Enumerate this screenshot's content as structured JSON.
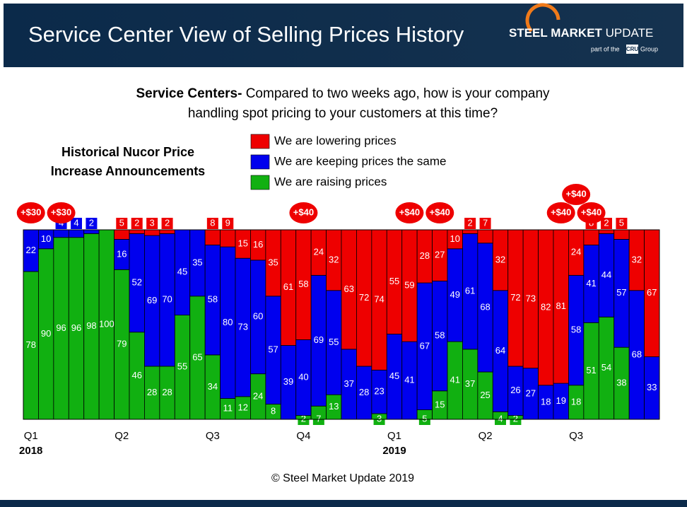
{
  "header": {
    "title": "Service Center View of Selling Prices History",
    "logo_bold": "STEEL MARKET",
    "logo_light": "UPDATE",
    "logo_sub_pre": "part of the",
    "logo_sub_box": "CRU",
    "logo_sub_post": "Group"
  },
  "chart_data": {
    "type": "stacked_bar_100",
    "subtitle_bold": "Service Centers-",
    "subtitle_lines": [
      "Compared to two weeks ago, how is your company",
      "handling spot pricing to your customers at this time?"
    ],
    "annotation_title_lines": [
      "Historical Nucor Price",
      "Increase Announcements"
    ],
    "categories": [
      "Q1",
      null,
      null,
      null,
      null,
      null,
      "Q2",
      null,
      null,
      null,
      null,
      null,
      "Q3",
      null,
      null,
      null,
      null,
      null,
      "Q4",
      null,
      null,
      null,
      null,
      null,
      "Q1",
      null,
      null,
      null,
      null,
      null,
      "Q2",
      null,
      null,
      null,
      null,
      null,
      "Q3",
      null,
      null,
      null,
      null,
      null
    ],
    "category_years": [
      "2018",
      null,
      null,
      null,
      null,
      null,
      null,
      null,
      null,
      null,
      null,
      null,
      null,
      null,
      null,
      null,
      null,
      null,
      null,
      null,
      null,
      null,
      null,
      null,
      "2019",
      null,
      null,
      null,
      null,
      null,
      null,
      null,
      null,
      null,
      null,
      null,
      null,
      null,
      null,
      null,
      null,
      null
    ],
    "series": [
      {
        "name": "We are lowering prices",
        "color": "#ee0000",
        "values": [
          0,
          0,
          0,
          0,
          0,
          0,
          5,
          2,
          3,
          2,
          0,
          0,
          8,
          9,
          15,
          16,
          35,
          61,
          58,
          24,
          32,
          63,
          72,
          74,
          55,
          59,
          28,
          27,
          10,
          2,
          7,
          32,
          72,
          73,
          82,
          81,
          24,
          8,
          2,
          5,
          32,
          67
        ]
      },
      {
        "name": "We are keeping prices the same",
        "color": "#0000ee",
        "values": [
          22,
          10,
          4,
          4,
          2,
          0,
          16,
          52,
          69,
          70,
          45,
          35,
          58,
          80,
          73,
          60,
          57,
          39,
          40,
          69,
          55,
          37,
          28,
          23,
          45,
          41,
          67,
          58,
          49,
          61,
          68,
          64,
          26,
          27,
          18,
          19,
          58,
          41,
          44,
          57,
          68,
          33
        ]
      },
      {
        "name": "We are raising prices",
        "color": "#11b011",
        "values": [
          78,
          90,
          96,
          96,
          98,
          100,
          79,
          46,
          28,
          28,
          55,
          65,
          34,
          11,
          12,
          24,
          8,
          0,
          2,
          7,
          13,
          0,
          0,
          3,
          0,
          0,
          5,
          15,
          41,
          37,
          25,
          4,
          2,
          0,
          0,
          0,
          18,
          51,
          54,
          38,
          0,
          0
        ]
      }
    ],
    "ylim": [
      0,
      100
    ],
    "annotations": [
      {
        "label": "+$30",
        "category": 0
      },
      {
        "label": "+$30",
        "category": 2
      },
      {
        "label": "+$40",
        "category": 18
      },
      {
        "label": "+$40",
        "category": 25
      },
      {
        "label": "+$40",
        "category": 27
      },
      {
        "label": "+$40",
        "category": 35
      },
      {
        "label": "+$40",
        "category": 36
      },
      {
        "label": "+$40",
        "category": 37
      }
    ],
    "annotation_color": "#ee0000",
    "footer": "© Steel Market Update 2019"
  }
}
